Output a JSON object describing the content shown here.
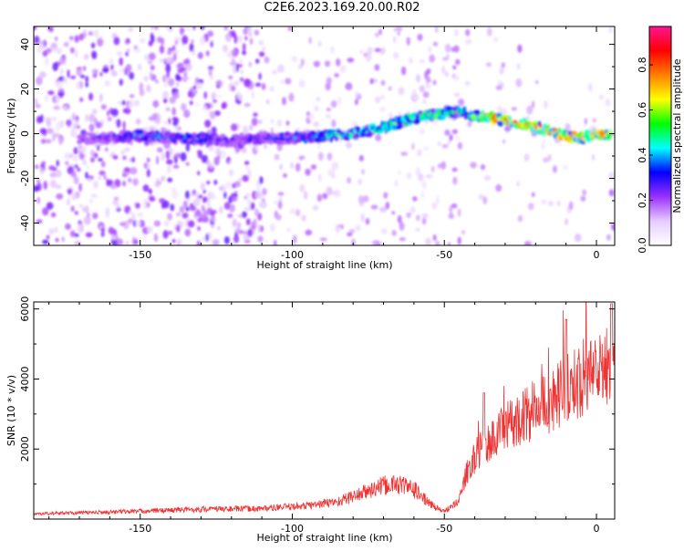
{
  "title": "C2E6.2023.169.20.00.R02",
  "chart_data": [
    {
      "type": "heatmap",
      "xlabel": "Height of straight line (km)",
      "ylabel": "Frequency (Hz)",
      "xlim": [
        -185,
        6
      ],
      "ylim": [
        -50,
        48
      ],
      "xticks": [
        -150,
        -100,
        -50,
        0
      ],
      "yticks": [
        -40,
        -20,
        0,
        20,
        40
      ],
      "colorbar": {
        "label": "Normalized spectral amplitude",
        "range": [
          0,
          0.97
        ],
        "ticks": [
          0.0,
          0.2,
          0.4,
          0.6,
          0.8
        ],
        "colors": [
          "#ffffff",
          "#e6ccff",
          "#9b30ff",
          "#0000ff",
          "#00ffff",
          "#00ff00",
          "#ffff00",
          "#ff8000",
          "#ff0000",
          "#ff1493"
        ]
      },
      "ridge": {
        "x": [
          -165,
          -150,
          -135,
          -120,
          -110,
          -100,
          -90,
          -80,
          -70,
          -60,
          -50,
          -45,
          -40,
          -30,
          -20,
          -10,
          -5,
          0,
          5
        ],
        "frequency": [
          -2,
          -1,
          -2,
          -3,
          -2,
          -2,
          -1,
          0,
          3,
          7,
          9,
          10,
          8,
          6,
          3,
          -1,
          -2,
          0,
          0
        ],
        "amplitude": [
          0.25,
          0.4,
          0.38,
          0.3,
          0.32,
          0.38,
          0.45,
          0.5,
          0.55,
          0.55,
          0.55,
          0.5,
          0.6,
          0.85,
          0.8,
          0.8,
          0.75,
          0.85,
          0.6
        ]
      }
    },
    {
      "type": "line",
      "xlabel": "Height of straight line (km)",
      "ylabel": "SNR (10 * v/v)",
      "xlim": [
        -185,
        6
      ],
      "ylim": [
        0,
        6200
      ],
      "xticks": [
        -150,
        -100,
        -50,
        0
      ],
      "yticks": [
        2000,
        4000,
        6000
      ],
      "color": "#ee3333",
      "envelope": {
        "x": [
          -185,
          -160,
          -130,
          -110,
          -95,
          -85,
          -80,
          -75,
          -70,
          -65,
          -60,
          -55,
          -50,
          -45,
          -42,
          -38,
          -35,
          -30,
          -25,
          -20,
          -15,
          -10,
          -5,
          0,
          5
        ],
        "y": [
          150,
          200,
          280,
          300,
          380,
          500,
          650,
          800,
          950,
          1000,
          850,
          450,
          200,
          600,
          1500,
          2000,
          2200,
          2600,
          2900,
          3100,
          3400,
          3700,
          4000,
          4300,
          4400
        ]
      }
    }
  ]
}
